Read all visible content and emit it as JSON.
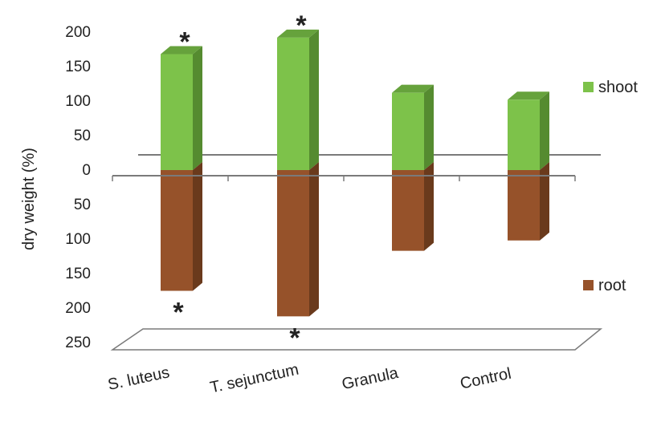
{
  "chart_data": {
    "type": "bar",
    "categories": [
      "S. luteus",
      "T. sejunctum",
      "Granula",
      "Control"
    ],
    "series": [
      {
        "name": "shoot",
        "color": "#7dc24a",
        "values": [
          168,
          192,
          112,
          102
        ]
      },
      {
        "name": "root",
        "color": "#96522a",
        "values": [
          -175,
          -212,
          -117,
          -102
        ]
      }
    ],
    "y_tick_labels": [
      "200",
      "150",
      "100",
      "50",
      "0",
      "50",
      "100",
      "150",
      "200",
      "250"
    ],
    "y_ticks": [
      200,
      150,
      100,
      50,
      0,
      -50,
      -100,
      -150,
      -200,
      -250
    ],
    "ylabel": "dry weight (%)",
    "ylim": [
      -250,
      200
    ],
    "significance": {
      "symbol": "*",
      "shoot": [
        true,
        true,
        false,
        false
      ],
      "root": [
        true,
        true,
        false,
        false
      ]
    },
    "grid": false,
    "legend_position": "right",
    "style": "3d-column"
  }
}
